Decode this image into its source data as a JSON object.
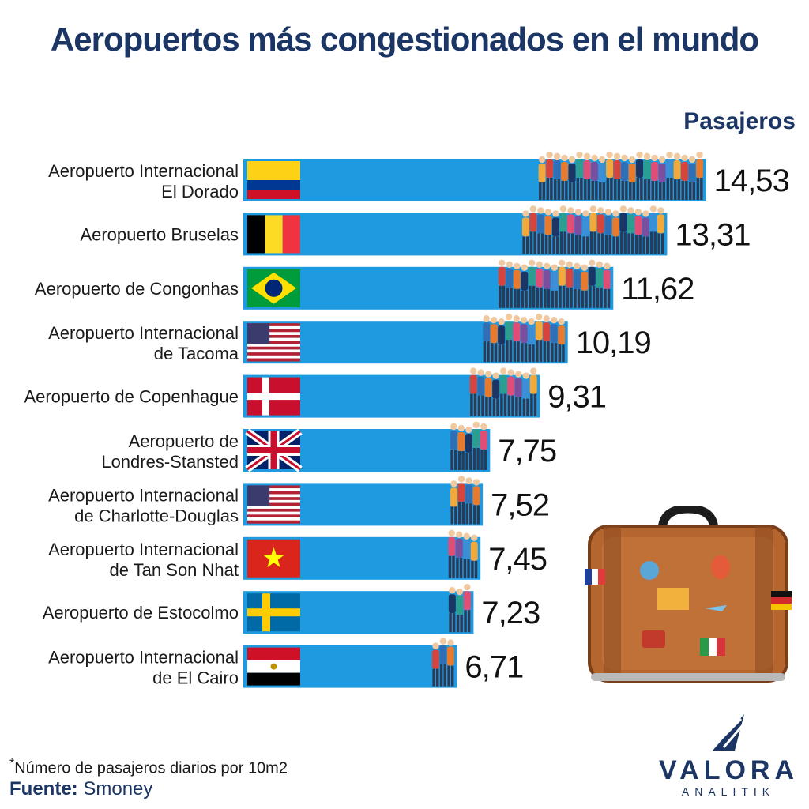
{
  "title": "Aeropuertos más congestionados en el mundo",
  "unit_label": "Pasajeros",
  "footnote_mark": "*",
  "footnote": "Número de pasajeros diarios por 10m2",
  "source_label": "Fuente:",
  "source_value": "Smoney",
  "logo": {
    "name": "VALORA",
    "sub": "ANALITIK"
  },
  "colors": {
    "bar": "#1e9ae0",
    "title": "#1b3564",
    "suitcase": "#b5652e"
  },
  "chart_data": {
    "type": "bar",
    "orientation": "horizontal",
    "categories": [
      [
        "Aeropuerto Internacional",
        "El Dorado"
      ],
      [
        "Aeropuerto Bruselas"
      ],
      [
        "Aeropuerto de Congonhas"
      ],
      [
        "Aeropuerto Internacional",
        "de Tacoma"
      ],
      [
        "Aeropuerto de Copenhague"
      ],
      [
        "Aeropuerto de",
        "Londres-Stansted"
      ],
      [
        "Aeropuerto Internacional",
        "de Charlotte-Douglas"
      ],
      [
        "Aeropuerto Internacional",
        "de Tan Son Nhat"
      ],
      [
        "Aeropuerto de Estocolmo"
      ],
      [
        "Aeropuerto Internacional",
        "de El Cairo"
      ]
    ],
    "values": [
      14.53,
      13.31,
      11.62,
      10.19,
      9.31,
      7.75,
      7.52,
      7.45,
      7.23,
      6.71
    ],
    "value_labels": [
      "14,53",
      "13,31",
      "11,62",
      "10,19",
      "9,31",
      "7,75",
      "7,52",
      "7,45",
      "7,23",
      "6,71"
    ],
    "flags": [
      "colombia",
      "belgium",
      "brazil",
      "usa",
      "denmark",
      "uk",
      "usa",
      "vietnam",
      "sweden",
      "egypt"
    ],
    "title": "Aeropuertos más congestionados en el mundo",
    "xlabel": "Pasajeros",
    "ylabel": "",
    "grid": false
  }
}
